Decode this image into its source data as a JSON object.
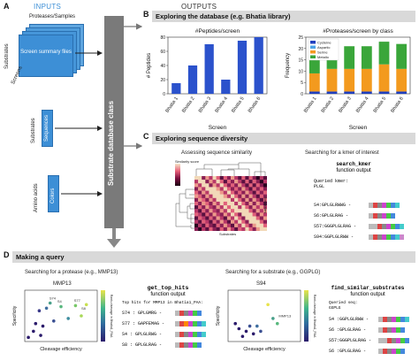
{
  "section_a": {
    "letter": "A",
    "inputs_label": "INPUTS",
    "outputs_label": "OUTPUTS",
    "proteases_samples": "Proteases/Samples",
    "substrates_label": "Substrates",
    "screens_label": "Screens",
    "screen_summary": "Screen summary files",
    "sequences": "Sequences",
    "colors": "Colors",
    "amino_acids": "Amino acids",
    "db_class": "Substrate database class"
  },
  "section_b": {
    "letter": "B",
    "title": "Exploring the database (e.g. Bhatia library)"
  },
  "section_c": {
    "letter": "C",
    "title": "Exploring sequence diversity",
    "similarity_title": "Assessing sequence similarity",
    "similarity_legend": "Similarity score",
    "substrates_axis": "Substrates",
    "kmer_title": "Searching for a kmer of interest",
    "kmer_func": "search_kmer",
    "kmer_func_sub": "function output",
    "queried_label": "Queried kmer:",
    "queried_value": "PLGL",
    "results": [
      "S4:GPLGLRWWG -",
      "S6:GPLGLRAG -",
      "S57:GGGPLGLRAG -",
      "S94:GGPLGLRWW -"
    ]
  },
  "section_d": {
    "letter": "D",
    "title": "Making a query",
    "protease_title": "Searching for a protease (e.g., MMP13)",
    "protease_name": "MMP13",
    "top_hits_func": "get_top_hits",
    "top_hits_sub": "function output",
    "top_hits_caption": "Top hits for MMP13 in Bhatia1_PAA:",
    "top_hits": [
      "S74 : GPLGMRG -",
      "S77 : GAPFEMAG -",
      "S4 : GPLGLRWG -",
      "S8 : GPLGLRAG -"
    ],
    "substrate_title": "Searching for a substrate (e.g., GGPLG)",
    "substrate_name": "S94",
    "similar_func": "find_similar_substrates",
    "similar_sub": "function output",
    "queried_seq_label": "Queried seq:",
    "queried_seq_value": "GGPLG",
    "similar": [
      "S4 :GGPLGLRWW -",
      "S6 :GPLGLRAG -",
      "S57:GGGPLGLRAG -",
      "S6 :GPLGLRAG -"
    ],
    "x_axis": "Cleavage efficiency",
    "y_axis": "Specificity",
    "colorbar_left": "Rank-cleavage in Bhatia1_PAA",
    "colorbar_right": "Rank-cleavage in Bhatia1_PAA",
    "scatter_labels_left": [
      "S74",
      "S77",
      "S4",
      "S8"
    ],
    "scatter_labels_right": [
      "MMP13"
    ]
  },
  "chart_data": [
    {
      "type": "bar",
      "title": "#Peptides/screen",
      "xlabel": "Screen",
      "ylabel": "# Peptides",
      "categories": [
        "Bhatia 1",
        "Bhatia 2",
        "Bhatia 3",
        "Bhatia 4",
        "Bhatia 5",
        "Bhatia 6"
      ],
      "values": [
        15,
        40,
        70,
        20,
        75,
        80
      ],
      "ylim": [
        0,
        80
      ],
      "yticks": [
        0,
        20,
        40,
        60,
        80
      ],
      "color": "#2b52cc"
    },
    {
      "type": "bar",
      "stacked": true,
      "title": "#Proteases/screen by class",
      "xlabel": "Screen",
      "ylabel": "Frequency",
      "categories": [
        "Bhatia 1",
        "Bhatia 2",
        "Bhatia 3",
        "Bhatia 4",
        "Bhatia 5",
        "Bhatia 6"
      ],
      "ylim": [
        0,
        25
      ],
      "yticks": [
        0,
        5,
        10,
        15,
        20,
        25
      ],
      "series": [
        {
          "name": "Cysteine",
          "color": "#1f3fbf",
          "values": [
            1,
            1,
            1,
            1,
            1,
            1
          ]
        },
        {
          "name": "Aspartic",
          "color": "#4da3e8",
          "values": [
            0,
            0,
            0,
            0,
            0,
            0
          ]
        },
        {
          "name": "Serine",
          "color": "#f39a1e",
          "values": [
            8,
            10,
            10,
            10,
            12,
            10
          ]
        },
        {
          "name": "Metallo",
          "color": "#3aa63a",
          "values": [
            6,
            6,
            10,
            10,
            10,
            11
          ]
        }
      ]
    }
  ]
}
